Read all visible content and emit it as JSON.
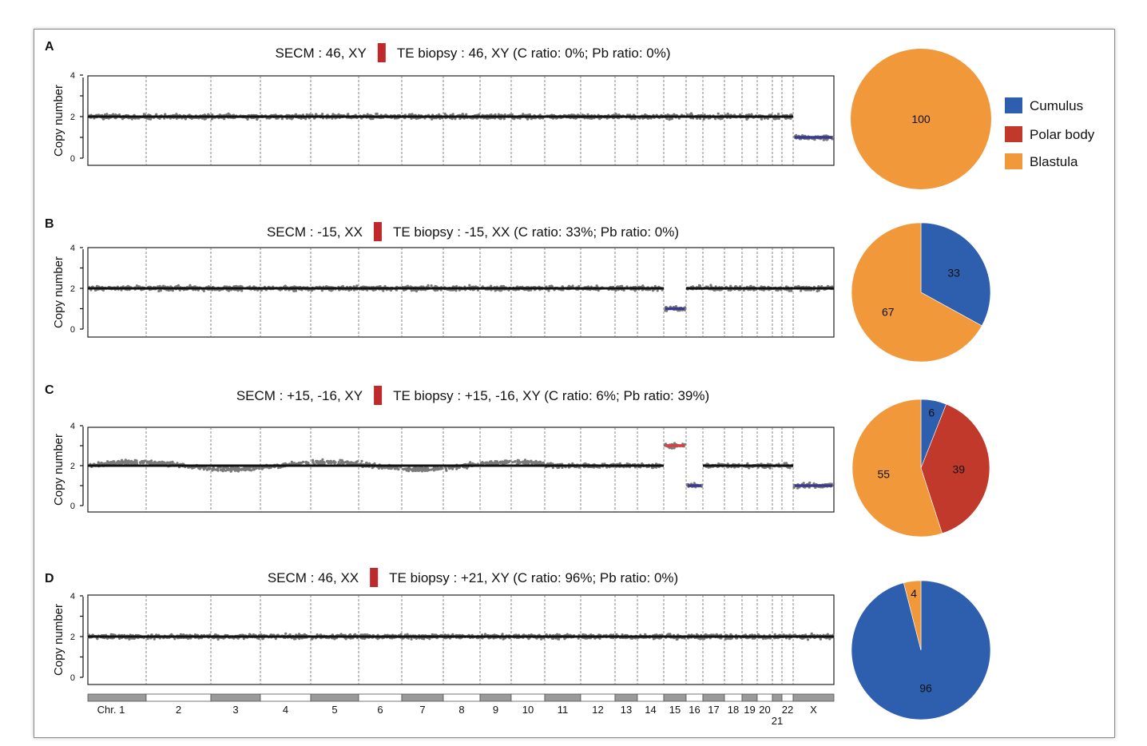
{
  "legend": [
    {
      "label": "Cumulus",
      "color": "#2e5fae"
    },
    {
      "label": "Polar body",
      "color": "#c0392b"
    },
    {
      "label": "Blastula",
      "color": "#f0983a"
    }
  ],
  "axis": {
    "ylabel": "Copy number",
    "yticks": [
      "0",
      "2",
      "4"
    ],
    "chr_labels": [
      "Chr. 1",
      "2",
      "3",
      "4",
      "5",
      "6",
      "7",
      "8",
      "9",
      "10",
      "11",
      "12",
      "13",
      "14",
      "15",
      "16",
      "17",
      "18",
      "19",
      "20",
      "21",
      "22",
      "X"
    ]
  },
  "colors": {
    "dot": "#7a7a7a",
    "segment": "#111111",
    "loss": "#3a3a8c",
    "gain": "#d94040",
    "marker": "#c0292b"
  },
  "chart_data": [
    {
      "type": "scatter",
      "panel": "A",
      "title_left": "SECM : 46, XY",
      "title_right": "TE biopsy : 46, XY (C ratio: 0%; Pb ratio: 0%)",
      "ylim": [
        0,
        4
      ],
      "segments": [
        {
          "from": "1",
          "to": "22",
          "value": 2,
          "kind": "normal"
        },
        {
          "from": "X",
          "to": "X",
          "value": 1,
          "kind": "loss"
        }
      ],
      "pie": {
        "type": "pie",
        "slices": [
          {
            "label": "Cumulus",
            "value": 0
          },
          {
            "label": "Polar body",
            "value": 0
          },
          {
            "label": "Blastula",
            "value": 100
          }
        ]
      }
    },
    {
      "type": "scatter",
      "panel": "B",
      "title_left": "SECM : -15, XX",
      "title_right": "TE biopsy : -15, XX (C ratio: 33%; Pb ratio: 0%)",
      "ylim": [
        0,
        4
      ],
      "segments": [
        {
          "from": "1",
          "to": "14",
          "value": 2,
          "kind": "normal"
        },
        {
          "from": "15",
          "to": "15",
          "value": 1,
          "kind": "loss"
        },
        {
          "from": "16",
          "to": "X",
          "value": 2,
          "kind": "normal"
        }
      ],
      "pie": {
        "type": "pie",
        "slices": [
          {
            "label": "Cumulus",
            "value": 33
          },
          {
            "label": "Polar body",
            "value": 0
          },
          {
            "label": "Blastula",
            "value": 67
          }
        ]
      }
    },
    {
      "type": "scatter",
      "panel": "C",
      "title_left": "SECM : +15, -16, XY",
      "title_right": "TE biopsy : +15, -16, XY (C ratio: 6%; Pb ratio: 39%)",
      "ylim": [
        0,
        4
      ],
      "segments": [
        {
          "from": "1",
          "to": "14",
          "value": 2,
          "kind": "normal"
        },
        {
          "from": "15",
          "to": "15",
          "value": 3,
          "kind": "gain"
        },
        {
          "from": "16",
          "to": "16",
          "value": 1,
          "kind": "loss"
        },
        {
          "from": "17",
          "to": "22",
          "value": 2,
          "kind": "normal"
        },
        {
          "from": "X",
          "to": "X",
          "value": 1,
          "kind": "loss"
        }
      ],
      "pie": {
        "type": "pie",
        "slices": [
          {
            "label": "Cumulus",
            "value": 6
          },
          {
            "label": "Polar body",
            "value": 39
          },
          {
            "label": "Blastula",
            "value": 55
          }
        ]
      }
    },
    {
      "type": "scatter",
      "panel": "D",
      "title_left": "SECM : 46, XX",
      "title_right": "TE biopsy : +21, XY (C ratio: 96%; Pb ratio: 0%)",
      "ylim": [
        0,
        4
      ],
      "segments": [
        {
          "from": "1",
          "to": "X",
          "value": 2,
          "kind": "normal"
        }
      ],
      "pie": {
        "type": "pie",
        "slices": [
          {
            "label": "Cumulus",
            "value": 96
          },
          {
            "label": "Polar body",
            "value": 0
          },
          {
            "label": "Blastula",
            "value": 4
          }
        ]
      }
    }
  ]
}
